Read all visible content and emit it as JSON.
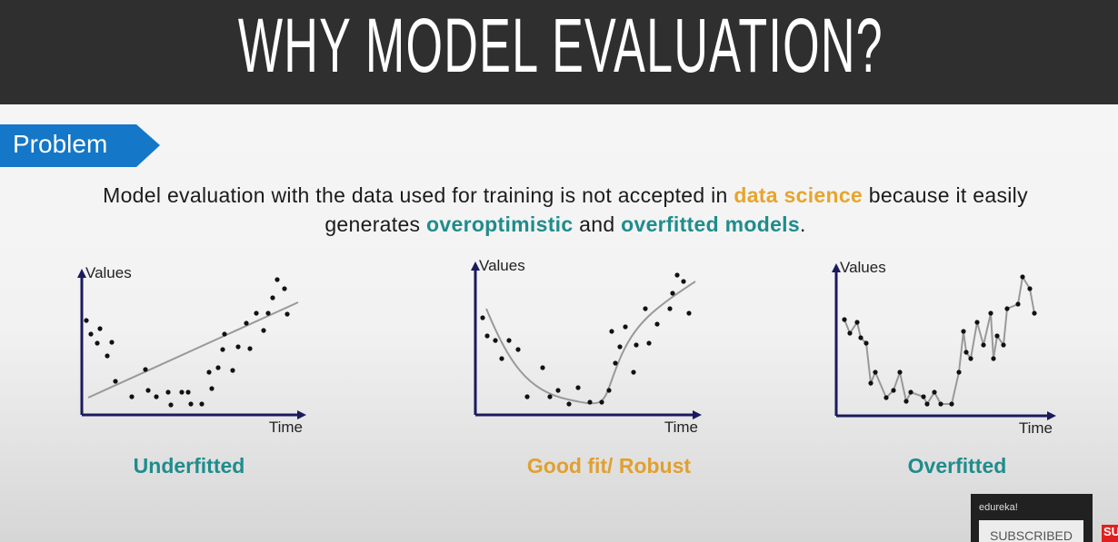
{
  "header": {
    "title": "WHY MODEL EVALUATION?"
  },
  "section_tag": "Problem",
  "description": {
    "line1": [
      "Model evaluation with the data used for training is not accepted in",
      "data science",
      "because it easily"
    ],
    "line2": [
      "generates",
      "overoptimistic",
      "and",
      "overfitted models",
      "."
    ]
  },
  "panels": [
    {
      "y_label": "Values",
      "x_label": "Time",
      "caption": "Underfitted"
    },
    {
      "y_label": "Values",
      "x_label": "Time",
      "caption": "Good fit/ Robust"
    },
    {
      "y_label": "Values",
      "x_label": "Time",
      "caption": "Overfitted"
    }
  ],
  "overlay": {
    "channel": "edureka!",
    "button": "SUBSCRIBED",
    "badge": "SU"
  }
}
